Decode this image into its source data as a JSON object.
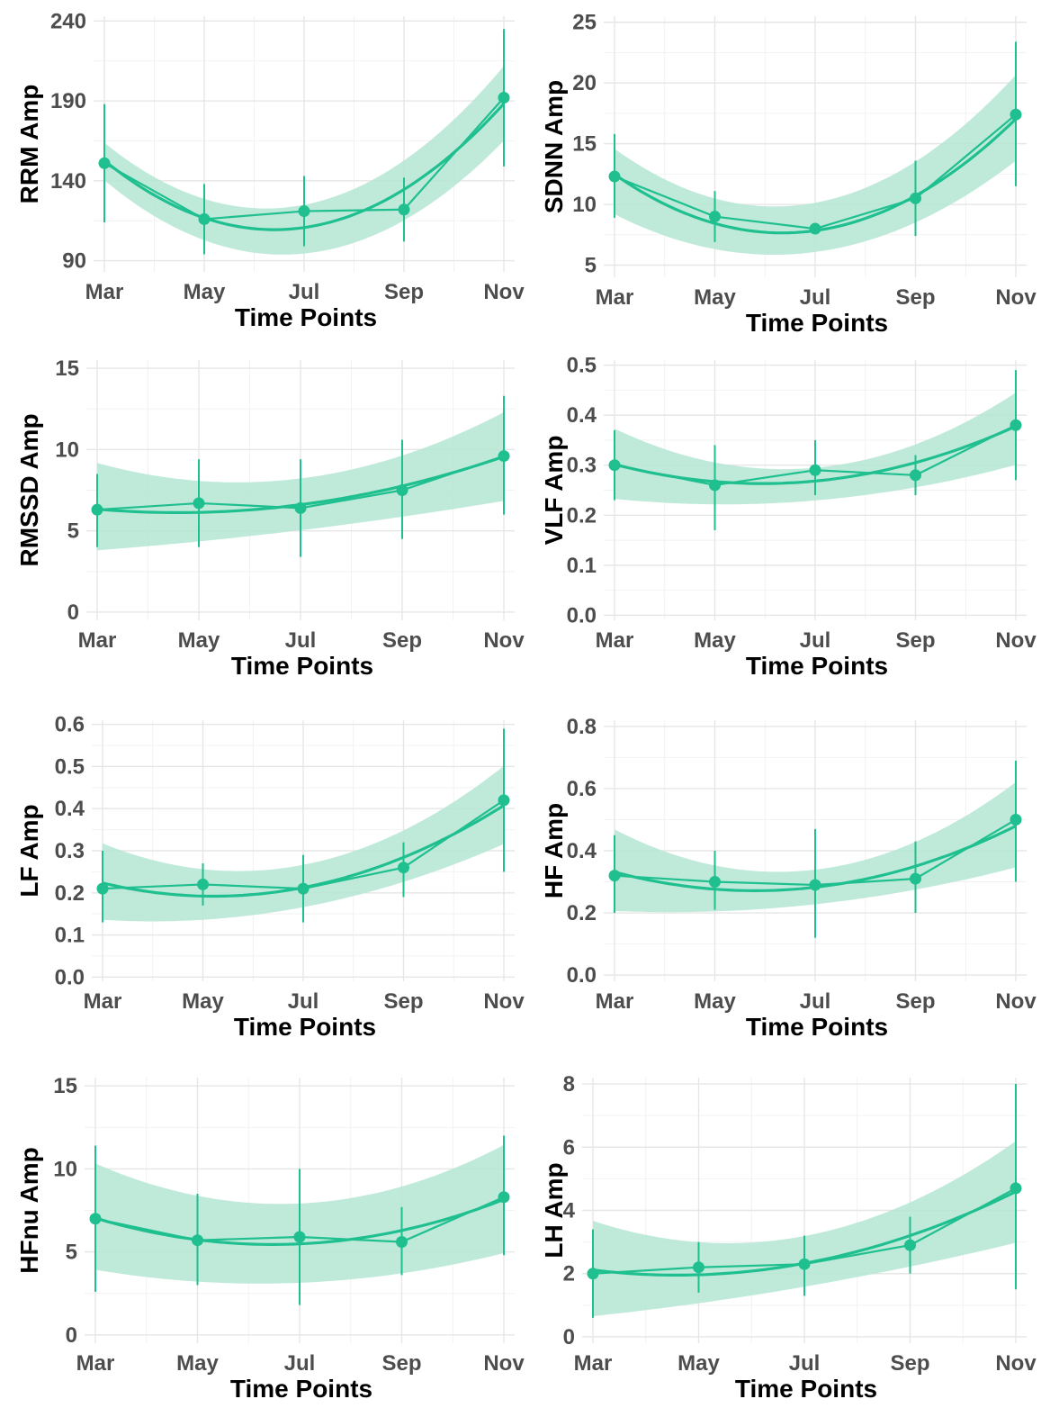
{
  "colors": {
    "accent": "#1fbf8f",
    "band": "#b4e6d4",
    "grid": "#e6e6e6",
    "tick_text": "#4d4d4d"
  },
  "chart_data": [
    {
      "type": "line",
      "xlabel": "Time Points",
      "ylabel": "RRM Amp",
      "categories": [
        "Mar",
        "May",
        "Jul",
        "Sep",
        "Nov"
      ],
      "yticks": [
        90,
        140,
        190,
        240
      ],
      "ylim": [
        83,
        243
      ],
      "series": [
        {
          "values": [
            151,
            116,
            121,
            122,
            192
          ],
          "err_low": [
            114,
            94,
            99,
            102,
            149
          ],
          "err_high": [
            188,
            138,
            143,
            142,
            235
          ]
        }
      ],
      "fit": {
        "values": [
          151,
          120,
          111,
          131,
          190
        ],
        "low": [
          140,
          103,
          96,
          113,
          166
        ],
        "high": [
          161,
          134,
          126,
          146,
          215
        ]
      }
    },
    {
      "type": "line",
      "xlabel": "Time Points",
      "ylabel": "SDNN Amp",
      "categories": [
        "Mar",
        "May",
        "Jul",
        "Sep",
        "Nov"
      ],
      "yticks": [
        5,
        10,
        15,
        20,
        25
      ],
      "ylim": [
        4,
        25.5
      ],
      "series": [
        {
          "values": [
            12.3,
            9.0,
            8.0,
            10.5,
            17.4
          ],
          "err_low": [
            8.9,
            6.9,
            7.9,
            7.4,
            11.5
          ],
          "err_high": [
            15.8,
            11.1,
            8.1,
            13.6,
            23.4
          ]
        }
      ],
      "fit": {
        "values": [
          12.3,
          8.8,
          7.8,
          10.4,
          17.2
        ],
        "low": [
          9.0,
          6.8,
          5.8,
          8.4,
          13.7
        ],
        "high": [
          14.4,
          10.8,
          10.3,
          13.0,
          20.9
        ]
      }
    },
    {
      "type": "line",
      "xlabel": "Time Points",
      "ylabel": "RMSSD Amp",
      "categories": [
        "Mar",
        "May",
        "Jul",
        "Sep",
        "Nov"
      ],
      "yticks": [
        0,
        5,
        10,
        15
      ],
      "ylim": [
        -0.5,
        15.5
      ],
      "series": [
        {
          "values": [
            6.3,
            6.7,
            6.4,
            7.5,
            9.6
          ],
          "err_low": [
            4.0,
            4.0,
            3.4,
            4.5,
            6.0
          ],
          "err_high": [
            8.5,
            9.4,
            9.4,
            10.6,
            13.3
          ]
        }
      ],
      "fit": {
        "values": [
          6.3,
          6.2,
          6.6,
          7.7,
          9.6
        ],
        "low": [
          3.8,
          4.4,
          4.9,
          6.0,
          6.8
        ],
        "high": [
          9.2,
          8.0,
          8.3,
          9.6,
          12.3
        ]
      }
    },
    {
      "type": "line",
      "xlabel": "Time Points",
      "ylabel": "VLF Amp",
      "categories": [
        "Mar",
        "May",
        "Jul",
        "Sep",
        "Nov"
      ],
      "yticks": [
        0.0,
        0.1,
        0.2,
        0.3,
        0.4,
        0.5
      ],
      "yticklabels": [
        "0.0",
        "0.1",
        "0.2",
        "0.3",
        "0.4",
        "0.5"
      ],
      "ylim": [
        -0.01,
        0.51
      ],
      "series": [
        {
          "values": [
            0.3,
            0.26,
            0.29,
            0.28,
            0.38
          ],
          "err_low": [
            0.23,
            0.17,
            0.24,
            0.24,
            0.27
          ],
          "err_high": [
            0.37,
            0.34,
            0.35,
            0.32,
            0.49
          ]
        }
      ],
      "fit": {
        "values": [
          0.3,
          0.27,
          0.27,
          0.3,
          0.38
        ],
        "low": [
          0.23,
          0.23,
          0.22,
          0.26,
          0.3
        ],
        "high": [
          0.37,
          0.31,
          0.3,
          0.33,
          0.45
        ]
      }
    },
    {
      "type": "line",
      "xlabel": "Time Points",
      "ylabel": "LF Amp",
      "categories": [
        "Mar",
        "May",
        "Jul",
        "Sep",
        "Nov"
      ],
      "yticks": [
        0.0,
        0.1,
        0.2,
        0.3,
        0.4,
        0.5,
        0.6
      ],
      "yticklabels": [
        "0.0",
        "0.1",
        "0.2",
        "0.3",
        "0.4",
        "0.5",
        "0.6"
      ],
      "ylim": [
        -0.01,
        0.61
      ],
      "series": [
        {
          "values": [
            0.21,
            0.22,
            0.21,
            0.26,
            0.42
          ],
          "err_low": [
            0.13,
            0.17,
            0.13,
            0.19,
            0.25
          ],
          "err_high": [
            0.3,
            0.27,
            0.29,
            0.32,
            0.59
          ]
        }
      ],
      "fit": {
        "values": [
          0.22,
          0.2,
          0.21,
          0.28,
          0.41
        ],
        "low": [
          0.13,
          0.15,
          0.16,
          0.22,
          0.32
        ],
        "high": [
          0.32,
          0.25,
          0.27,
          0.35,
          0.5
        ]
      }
    },
    {
      "type": "line",
      "xlabel": "Time Points",
      "ylabel": "HF Amp",
      "categories": [
        "Mar",
        "May",
        "Jul",
        "Sep",
        "Nov"
      ],
      "yticks": [
        0.0,
        0.2,
        0.4,
        0.6,
        0.8
      ],
      "yticklabels": [
        "0.0",
        "0.2",
        "0.4",
        "0.6",
        "0.8"
      ],
      "ylim": [
        -0.02,
        0.82
      ],
      "series": [
        {
          "values": [
            0.32,
            0.3,
            0.29,
            0.31,
            0.5
          ],
          "err_low": [
            0.2,
            0.21,
            0.12,
            0.2,
            0.3
          ],
          "err_high": [
            0.45,
            0.4,
            0.47,
            0.43,
            0.69
          ]
        }
      ],
      "fit": {
        "values": [
          0.33,
          0.28,
          0.28,
          0.35,
          0.48
        ],
        "low": [
          0.2,
          0.22,
          0.22,
          0.27,
          0.35
        ],
        "high": [
          0.47,
          0.35,
          0.34,
          0.43,
          0.62
        ]
      }
    },
    {
      "type": "line",
      "xlabel": "Time Points",
      "ylabel": "HFnu Amp",
      "categories": [
        "Mar",
        "May",
        "Jul",
        "Sep",
        "Nov"
      ],
      "yticks": [
        0,
        5,
        10,
        15
      ],
      "ylim": [
        -0.5,
        15.5
      ],
      "series": [
        {
          "values": [
            7.0,
            5.7,
            5.9,
            5.6,
            8.3
          ],
          "err_low": [
            2.6,
            3.0,
            1.8,
            3.6,
            4.8
          ],
          "err_high": [
            11.4,
            8.5,
            10.0,
            7.7,
            12.0
          ]
        }
      ],
      "fit": {
        "values": [
          7.0,
          5.8,
          5.5,
          6.2,
          8.2
        ],
        "low": [
          3.9,
          3.3,
          3.0,
          3.8,
          4.9
        ],
        "high": [
          10.3,
          8.4,
          8.0,
          8.8,
          11.5
        ]
      }
    },
    {
      "type": "line",
      "xlabel": "Time Points",
      "ylabel": "LH Amp",
      "categories": [
        "Mar",
        "May",
        "Jul",
        "Sep",
        "Nov"
      ],
      "yticks": [
        0,
        2,
        4,
        6,
        8
      ],
      "ylim": [
        -0.2,
        8.2
      ],
      "series": [
        {
          "values": [
            2.0,
            2.2,
            2.3,
            2.9,
            4.7
          ],
          "err_low": [
            0.6,
            1.4,
            1.3,
            2.0,
            1.5
          ],
          "err_high": [
            3.4,
            3.0,
            3.2,
            3.8,
            8.0
          ]
        }
      ],
      "fit": {
        "values": [
          2.1,
          2.0,
          2.3,
          3.2,
          4.6
        ],
        "low": [
          0.6,
          1.2,
          1.5,
          2.2,
          3.0
        ],
        "high": [
          3.7,
          2.9,
          3.3,
          4.2,
          6.2
        ]
      }
    }
  ]
}
